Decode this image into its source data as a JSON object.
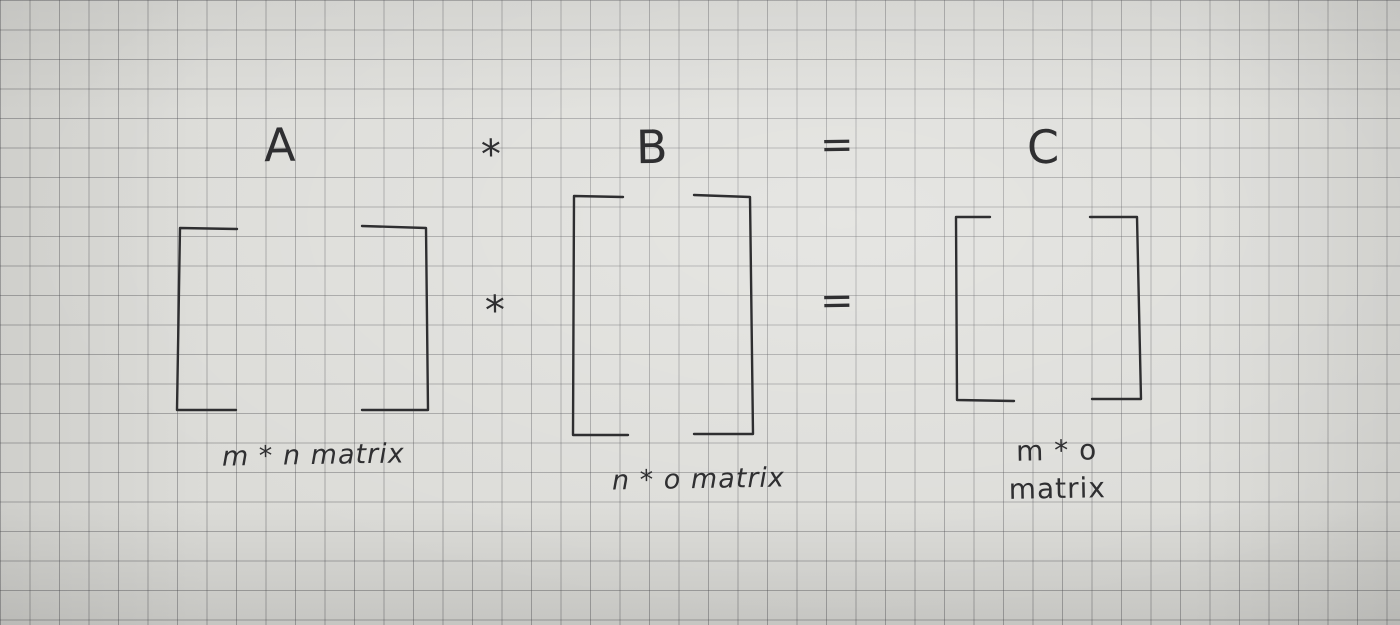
{
  "header": {
    "label_a": "A",
    "op_multiply": "*",
    "label_b": "B",
    "op_equals": "=",
    "label_c": "C"
  },
  "equation": {
    "op_multiply": "*",
    "op_equals": "="
  },
  "captions": {
    "a": "m * n matrix",
    "b": "n * o matrix",
    "c_line1": "m * o",
    "c_line2": "matrix"
  },
  "colors": {
    "paper": "#dcdcd8",
    "grid": "#46464b",
    "ink": "#2e2e30"
  }
}
